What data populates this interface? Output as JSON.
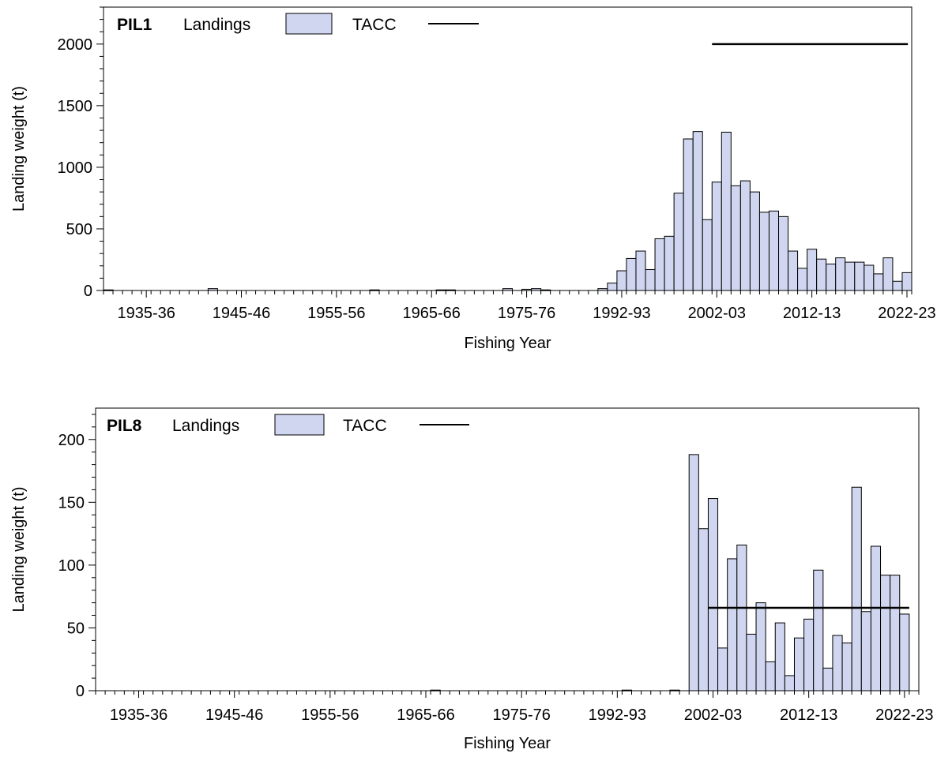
{
  "colors": {
    "bar_fill": "#d0d6ef",
    "bar_stroke": "#000000",
    "tacc_line": "#000000"
  },
  "chart_data": [
    {
      "type": "bar",
      "panel_label": "PIL1",
      "legend": {
        "landings_label": "Landings",
        "tacc_label": "TACC"
      },
      "xlabel": "Fishing Year",
      "ylabel": "Landing weight (t)",
      "ylim": [
        0,
        2300
      ],
      "yticks": [
        0,
        500,
        1000,
        1500,
        2000
      ],
      "ytick_labels": [
        "0",
        "500",
        "1000",
        "1500",
        "2000"
      ],
      "xtick_labels": [
        "1935-36",
        "1945-46",
        "1955-56",
        "1965-66",
        "1975-76",
        "1992-93",
        "2002-03",
        "2012-13",
        "2022-23"
      ],
      "xtick_indices": [
        5,
        15,
        25,
        35,
        45,
        55,
        65,
        75,
        85
      ],
      "values": [
        5,
        0,
        0,
        0,
        0,
        0,
        0,
        0,
        0,
        0,
        0,
        15,
        0,
        0,
        0,
        0,
        0,
        0,
        0,
        0,
        0,
        0,
        0,
        0,
        0,
        0,
        0,
        0,
        5,
        0,
        0,
        0,
        0,
        0,
        0,
        5,
        5,
        0,
        0,
        0,
        0,
        0,
        15,
        0,
        10,
        15,
        5,
        0,
        0,
        0,
        0,
        0,
        15,
        60,
        160,
        260,
        320,
        170,
        420,
        440,
        790,
        1230,
        1290,
        575,
        880,
        1285,
        850,
        890,
        800,
        635,
        645,
        600,
        320,
        180,
        335,
        255,
        215,
        265,
        230,
        230,
        205,
        135,
        265,
        75,
        145
      ],
      "tacc": {
        "from_index": 64,
        "to_index": 84.6,
        "value": 2000
      }
    },
    {
      "type": "bar",
      "panel_label": "PIL8",
      "legend": {
        "landings_label": "Landings",
        "tacc_label": "TACC"
      },
      "xlabel": "Fishing Year",
      "ylabel": "Landing weight (t)",
      "ylim": [
        0,
        225
      ],
      "yticks": [
        0,
        50,
        100,
        150,
        200
      ],
      "ytick_labels": [
        "0",
        "50",
        "100",
        "150",
        "200"
      ],
      "xtick_labels": [
        "1935-36",
        "1945-46",
        "1955-56",
        "1965-66",
        "1975-76",
        "1992-93",
        "2002-03",
        "2012-13",
        "2022-23"
      ],
      "xtick_indices": [
        5,
        15,
        25,
        35,
        45,
        55,
        65,
        75,
        85
      ],
      "values": [
        0,
        0,
        0,
        0,
        0,
        0,
        0,
        0,
        0,
        0,
        0,
        0,
        0,
        0,
        0,
        0,
        0,
        0,
        0,
        0,
        0,
        0,
        0,
        0,
        0,
        0,
        0,
        0,
        0,
        0,
        0,
        0,
        0,
        0,
        0,
        0.5,
        0,
        0,
        0,
        0,
        0,
        0,
        0,
        0,
        0,
        0,
        0,
        0,
        0,
        0,
        0,
        0,
        0,
        0,
        0,
        0.5,
        0,
        0,
        0,
        0,
        0.5,
        0,
        188,
        129,
        153,
        34,
        105,
        116,
        45,
        70,
        23,
        54,
        12,
        42,
        57,
        96,
        18,
        44,
        38,
        162,
        63,
        115,
        92,
        92,
        61
      ],
      "tacc": {
        "from_index": 64,
        "to_index": 85,
        "value": 66
      }
    }
  ]
}
